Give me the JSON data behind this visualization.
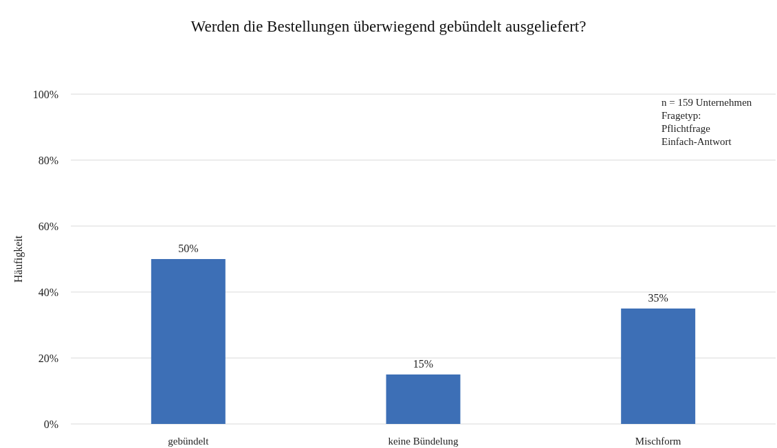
{
  "chart_data": {
    "type": "bar",
    "title": "Werden die Bestellungen überwiegend gebündelt ausgeliefert?",
    "ylabel": "Häufigkeit",
    "categories": [
      "gebündelt",
      "keine Bündelung",
      "Mischform"
    ],
    "values": [
      50,
      15,
      35
    ],
    "value_labels": [
      "50%",
      "15%",
      "35%"
    ],
    "color": "#3d6fb6",
    "ylim": [
      0,
      100
    ],
    "yticks": [
      {
        "value": 0,
        "label": "0%"
      },
      {
        "value": 20,
        "label": "20%"
      },
      {
        "value": 40,
        "label": "40%"
      },
      {
        "value": 60,
        "label": "60%"
      },
      {
        "value": 80,
        "label": "80%"
      },
      {
        "value": 100,
        "label": "100%"
      }
    ],
    "grid": "y",
    "annotations": [
      "n = 159 Unternehmen\nFragetyp:\nPflichtfrage\nEinfach-Antwort"
    ]
  }
}
